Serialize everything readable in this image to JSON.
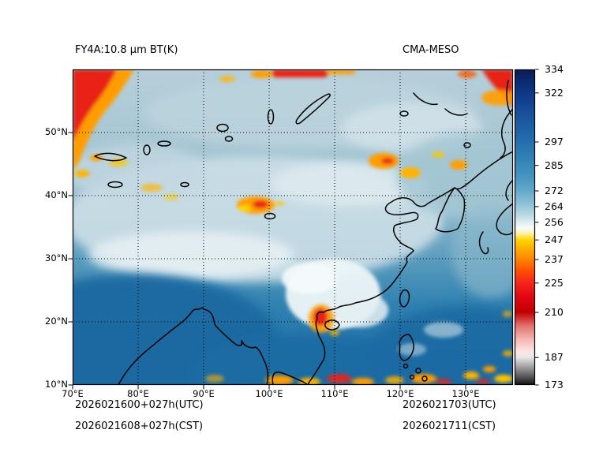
{
  "figure": {
    "title_left": "FY4A:10.8 μm BT(K)",
    "title_right": "CMA-MESO",
    "footer": {
      "valid_utc": "2026021600+027h(UTC)",
      "valid_cst": "2026021608+027h(CST)",
      "time_utc": "2026021703(UTC)",
      "time_cst": "2026021711(CST)"
    }
  },
  "chart_data": {
    "type": "heatmap",
    "title": "FY4A:10.8 μm BT(K)",
    "subtitle_right": "CMA-MESO",
    "field": "10.8 μm brightness temperature",
    "units": "K",
    "grid": true,
    "x_axis": {
      "label": "longitude",
      "ticks": [
        "70°E",
        "80°E",
        "90°E",
        "100°E",
        "110°E",
        "120°E",
        "130°E"
      ],
      "values": [
        70,
        80,
        90,
        100,
        110,
        120,
        130
      ],
      "range": [
        70,
        137.2
      ]
    },
    "y_axis": {
      "label": "latitude",
      "ticks": [
        "10°N",
        "20°N",
        "30°N",
        "40°N",
        "50°N"
      ],
      "values": [
        10,
        20,
        30,
        40,
        50
      ],
      "range": [
        10,
        60
      ]
    },
    "colorbar": {
      "min": 173,
      "max": 334,
      "ticks": [
        334,
        322,
        297,
        285,
        272,
        264,
        256,
        247,
        237,
        225,
        210,
        187,
        173
      ],
      "stops": [
        {
          "value": 334,
          "color": "#081c54"
        },
        {
          "value": 326,
          "color": "#0d2f7a"
        },
        {
          "value": 318,
          "color": "#123f90"
        },
        {
          "value": 310,
          "color": "#1a549f"
        },
        {
          "value": 300,
          "color": "#2368aa"
        },
        {
          "value": 290,
          "color": "#2f7fb5"
        },
        {
          "value": 280,
          "color": "#4393c0"
        },
        {
          "value": 272,
          "color": "#64a9cb"
        },
        {
          "value": 266,
          "color": "#8abfd6"
        },
        {
          "value": 260,
          "color": "#b5d8e2"
        },
        {
          "value": 256,
          "color": "#ddeef2"
        },
        {
          "value": 253,
          "color": "#f7fbf9"
        },
        {
          "value": 250,
          "color": "#ffef9a"
        },
        {
          "value": 247,
          "color": "#ffd400"
        },
        {
          "value": 242,
          "color": "#ffaa00"
        },
        {
          "value": 237,
          "color": "#ff8400"
        },
        {
          "value": 231,
          "color": "#ff4d00"
        },
        {
          "value": 226,
          "color": "#f72a1d"
        },
        {
          "value": 218,
          "color": "#e30613"
        },
        {
          "value": 210,
          "color": "#c00000"
        },
        {
          "value": 203,
          "color": "#e4716e"
        },
        {
          "value": 196,
          "color": "#f5b8b4"
        },
        {
          "value": 190,
          "color": "#fce4e2"
        },
        {
          "value": 187,
          "color": "#e8e8e8"
        },
        {
          "value": 182,
          "color": "#a0a0a0"
        },
        {
          "value": 177,
          "color": "#565656"
        },
        {
          "value": 173,
          "color": "#121212"
        }
      ]
    },
    "palette": {
      "warm_surface_blue": "#1b6ba2",
      "midlevel_cloud_light_blue": "#ccdfe7",
      "cloud_white": "#eef6f8",
      "cold_cloud_orange": "#ff9d00",
      "very_cold_cloud_red": "#e82417"
    }
  }
}
